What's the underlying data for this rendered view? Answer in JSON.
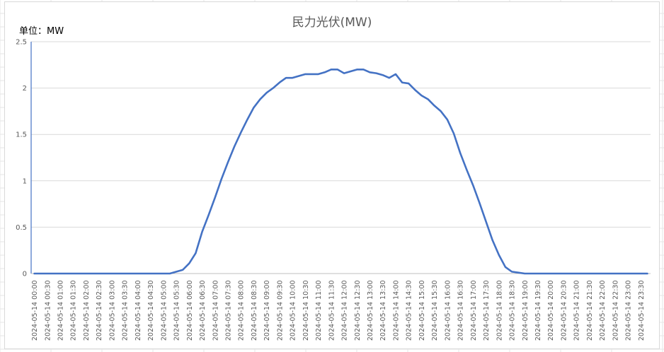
{
  "chart_data": {
    "type": "line",
    "title": "民力光伏(MW)",
    "unit_label": "单位：MW",
    "ylim": [
      0,
      2.5
    ],
    "yticks": [
      "0",
      "0.5",
      "1",
      "1.5",
      "2",
      "2.5"
    ],
    "grid": true,
    "legend": "none",
    "line_color": "#4472c4",
    "axis_color": "#4472c4",
    "grid_color": "#d9d9d9",
    "x": [
      "2024-05-14 00:00",
      "2024-05-14 00:15",
      "2024-05-14 00:30",
      "2024-05-14 00:45",
      "2024-05-14 01:00",
      "2024-05-14 01:15",
      "2024-05-14 01:30",
      "2024-05-14 01:45",
      "2024-05-14 02:00",
      "2024-05-14 02:15",
      "2024-05-14 02:30",
      "2024-05-14 02:45",
      "2024-05-14 03:00",
      "2024-05-14 03:15",
      "2024-05-14 03:30",
      "2024-05-14 03:45",
      "2024-05-14 04:00",
      "2024-05-14 04:15",
      "2024-05-14 04:30",
      "2024-05-14 04:45",
      "2024-05-14 05:00",
      "2024-05-14 05:15",
      "2024-05-14 05:30",
      "2024-05-14 05:45",
      "2024-05-14 06:00",
      "2024-05-14 06:15",
      "2024-05-14 06:30",
      "2024-05-14 06:45",
      "2024-05-14 07:00",
      "2024-05-14 07:15",
      "2024-05-14 07:30",
      "2024-05-14 07:45",
      "2024-05-14 08:00",
      "2024-05-14 08:15",
      "2024-05-14 08:30",
      "2024-05-14 08:45",
      "2024-05-14 09:00",
      "2024-05-14 09:15",
      "2024-05-14 09:30",
      "2024-05-14 09:45",
      "2024-05-14 10:00",
      "2024-05-14 10:15",
      "2024-05-14 10:30",
      "2024-05-14 10:45",
      "2024-05-14 11:00",
      "2024-05-14 11:15",
      "2024-05-14 11:30",
      "2024-05-14 11:45",
      "2024-05-14 12:00",
      "2024-05-14 12:15",
      "2024-05-14 12:30",
      "2024-05-14 12:45",
      "2024-05-14 13:00",
      "2024-05-14 13:15",
      "2024-05-14 13:30",
      "2024-05-14 13:45",
      "2024-05-14 14:00",
      "2024-05-14 14:15",
      "2024-05-14 14:30",
      "2024-05-14 14:45",
      "2024-05-14 15:00",
      "2024-05-14 15:15",
      "2024-05-14 15:30",
      "2024-05-14 15:45",
      "2024-05-14 16:00",
      "2024-05-14 16:15",
      "2024-05-14 16:30",
      "2024-05-14 16:45",
      "2024-05-14 17:00",
      "2024-05-14 17:15",
      "2024-05-14 17:30",
      "2024-05-14 17:45",
      "2024-05-14 18:00",
      "2024-05-14 18:15",
      "2024-05-14 18:30",
      "2024-05-14 18:45",
      "2024-05-14 19:00",
      "2024-05-14 19:15",
      "2024-05-14 19:30",
      "2024-05-14 19:45",
      "2024-05-14 20:00",
      "2024-05-14 20:15",
      "2024-05-14 20:30",
      "2024-05-14 20:45",
      "2024-05-14 21:00",
      "2024-05-14 21:15",
      "2024-05-14 21:30",
      "2024-05-14 21:45",
      "2024-05-14 22:00",
      "2024-05-14 22:15",
      "2024-05-14 22:30",
      "2024-05-14 22:45",
      "2024-05-14 23:00",
      "2024-05-14 23:15",
      "2024-05-14 23:30",
      "2024-05-14 23:45"
    ],
    "xtick_labels": [
      "2024-05-14 00:00",
      "2024-05-14 00:30",
      "2024-05-14 01:00",
      "2024-05-14 01:30",
      "2024-05-14 02:00",
      "2024-05-14 02:30",
      "2024-05-14 03:00",
      "2024-05-14 03:30",
      "2024-05-14 04:00",
      "2024-05-14 04:30",
      "2024-05-14 05:00",
      "2024-05-14 05:30",
      "2024-05-14 06:00",
      "2024-05-14 06:30",
      "2024-05-14 07:00",
      "2024-05-14 07:30",
      "2024-05-14 08:00",
      "2024-05-14 08:30",
      "2024-05-14 09:00",
      "2024-05-14 09:30",
      "2024-05-14 10:00",
      "2024-05-14 10:30",
      "2024-05-14 11:00",
      "2024-05-14 11:30",
      "2024-05-14 12:00",
      "2024-05-14 12:30",
      "2024-05-14 13:00",
      "2024-05-14 13:30",
      "2024-05-14 14:00",
      "2024-05-14 14:30",
      "2024-05-14 15:00",
      "2024-05-14 15:30",
      "2024-05-14 16:00",
      "2024-05-14 16:30",
      "2024-05-14 17:00",
      "2024-05-14 17:30",
      "2024-05-14 18:00",
      "2024-05-14 18:30",
      "2024-05-14 19:00",
      "2024-05-14 19:30",
      "2024-05-14 20:00",
      "2024-05-14 20:30",
      "2024-05-14 21:00",
      "2024-05-14 21:30",
      "2024-05-14 22:00",
      "2024-05-14 22:30",
      "2024-05-14 23:00",
      "2024-05-14 23:30"
    ],
    "series": [
      {
        "values": [
          0,
          0,
          0,
          0,
          0,
          0,
          0,
          0,
          0,
          0,
          0,
          0,
          0,
          0,
          0,
          0,
          0,
          0,
          0,
          0,
          0,
          0,
          0.02,
          0.04,
          0.11,
          0.22,
          0.45,
          0.63,
          0.82,
          1.02,
          1.2,
          1.37,
          1.52,
          1.66,
          1.79,
          1.88,
          1.95,
          2.0,
          2.06,
          2.11,
          2.11,
          2.13,
          2.15,
          2.15,
          2.15,
          2.17,
          2.2,
          2.2,
          2.16,
          2.18,
          2.2,
          2.2,
          2.17,
          2.16,
          2.14,
          2.11,
          2.15,
          2.06,
          2.05,
          1.98,
          1.92,
          1.88,
          1.81,
          1.75,
          1.66,
          1.51,
          1.3,
          1.12,
          0.95,
          0.76,
          0.56,
          0.36,
          0.2,
          0.07,
          0.02,
          0.01,
          0,
          0,
          0,
          0,
          0,
          0,
          0,
          0,
          0,
          0,
          0,
          0,
          0,
          0,
          0,
          0,
          0,
          0,
          0,
          0
        ]
      }
    ]
  }
}
